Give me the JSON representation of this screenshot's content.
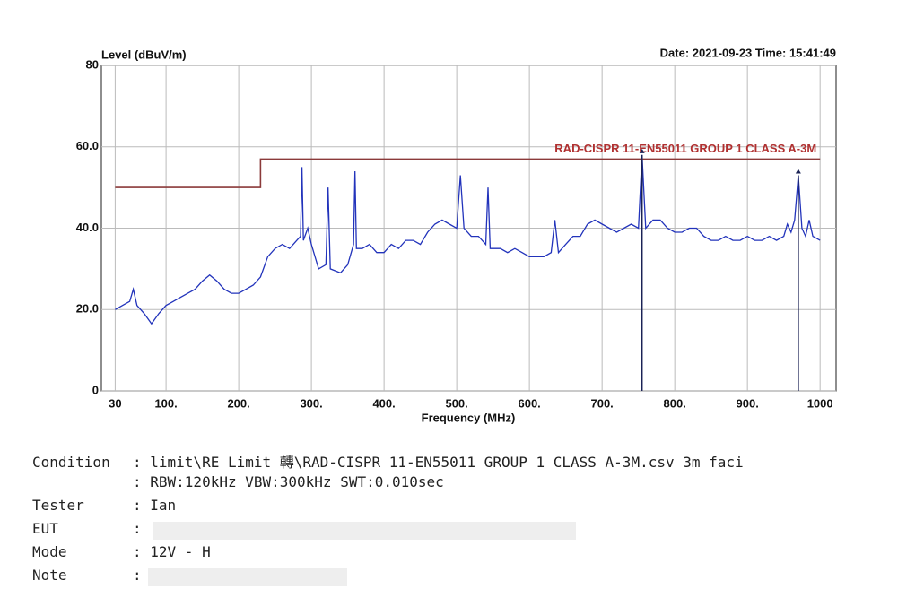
{
  "chart_data": {
    "type": "line",
    "y_label": "Level (dBuV/m)",
    "x_label": "Frequency (MHz)",
    "date_time": "Date: 2021-09-23  Time: 15:41:49",
    "xlim": [
      11,
      1022
    ],
    "ylim": [
      0,
      80
    ],
    "xticks": [
      30,
      {
        "value": 100,
        "label": "100."
      },
      {
        "value": 200,
        "label": "200."
      },
      {
        "value": 300,
        "label": "300."
      },
      {
        "value": 400,
        "label": "400."
      },
      {
        "value": 500,
        "label": "500."
      },
      {
        "value": 600,
        "label": "600."
      },
      {
        "value": 700,
        "label": "700."
      },
      {
        "value": 800,
        "label": "800."
      },
      {
        "value": 900,
        "label": "900."
      },
      1000
    ],
    "yticks": [
      0,
      {
        "value": 20,
        "label": "20.0"
      },
      {
        "value": 40,
        "label": "40.0"
      },
      {
        "value": 60,
        "label": "60.0"
      },
      80
    ],
    "grid": true,
    "series": [
      {
        "name": null,
        "color": "#2233bb",
        "x": [
          30,
          40,
          50,
          55,
          60,
          70,
          80,
          90,
          100,
          110,
          120,
          130,
          140,
          150,
          160,
          170,
          180,
          190,
          200,
          210,
          220,
          230,
          240,
          250,
          260,
          270,
          280,
          285,
          287,
          289,
          295,
          300,
          310,
          320,
          323,
          326,
          340,
          350,
          358,
          360,
          362,
          370,
          380,
          390,
          400,
          410,
          420,
          430,
          440,
          450,
          460,
          470,
          480,
          490,
          500,
          505,
          510,
          520,
          530,
          540,
          543,
          546,
          560,
          570,
          580,
          590,
          600,
          610,
          620,
          630,
          635,
          640,
          650,
          660,
          670,
          680,
          690,
          700,
          710,
          720,
          730,
          740,
          750,
          755,
          760,
          770,
          780,
          790,
          800,
          810,
          820,
          830,
          840,
          850,
          860,
          870,
          880,
          890,
          900,
          910,
          920,
          930,
          940,
          950,
          955,
          960,
          965,
          970,
          975,
          980,
          985,
          990,
          1000
        ],
        "values": [
          20,
          21,
          22,
          25,
          21,
          19,
          16.5,
          19,
          21,
          22,
          23,
          24,
          25,
          27,
          28.5,
          27,
          25,
          24,
          24,
          25,
          26,
          28,
          33,
          35,
          36,
          35,
          37,
          38,
          55,
          37,
          40,
          36,
          30,
          31,
          50,
          30,
          29,
          31,
          36,
          54,
          35,
          35,
          36,
          34,
          34,
          36,
          35,
          37,
          37,
          36,
          39,
          41,
          42,
          41,
          40,
          53,
          40,
          38,
          38,
          36,
          50,
          35,
          35,
          34,
          35,
          34,
          33,
          33,
          33,
          34,
          42,
          34,
          36,
          38,
          38,
          41,
          42,
          41,
          40,
          39,
          40,
          41,
          40,
          58,
          40,
          42,
          42,
          40,
          39,
          39,
          40,
          40,
          38,
          37,
          37,
          38,
          37,
          37,
          38,
          37,
          37,
          38,
          37,
          38,
          41,
          39,
          42,
          53,
          40,
          38,
          42,
          38,
          37
        ]
      },
      {
        "name": "RAD-CISPR 11-EN55011 GROUP 1 CLASS A-3M",
        "color": "#8b3a3a",
        "x": [
          30,
          230,
          230,
          1000
        ],
        "values": [
          50,
          50,
          57,
          57
        ]
      }
    ],
    "markers": {
      "color": "#1a2255",
      "x": [
        755,
        970
      ],
      "values": [
        58,
        53
      ]
    }
  },
  "report": {
    "rows": [
      {
        "label": "Condition",
        "value": ": limit\\RE Limit 轉\\RAD-CISPR 11-EN55011 GROUP 1 CLASS A-3M.csv 3m faci"
      },
      {
        "label": null,
        "value": ": RBW:120kHz VBW:300kHz SWT:0.010sec"
      },
      {
        "label": "Tester",
        "value": ": Ian"
      },
      {
        "label": "EUT",
        "value": ":"
      },
      {
        "label": "Mode",
        "value": ": 12V - H"
      },
      {
        "label": "Note",
        "value": ":"
      }
    ]
  }
}
